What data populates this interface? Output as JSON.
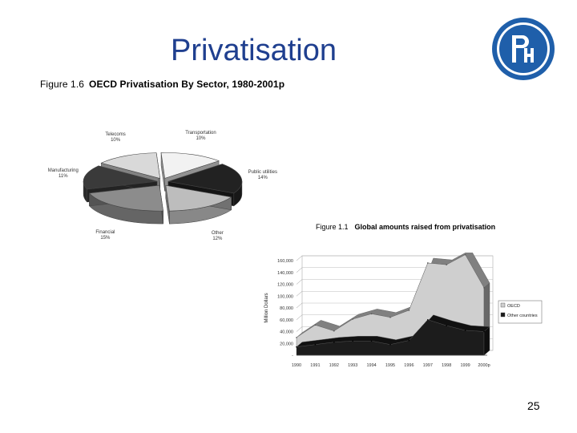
{
  "slide": {
    "title": "Privatisation",
    "page_number": "25",
    "logo": {
      "name": "hse-university-logo",
      "text": "Вш",
      "color": "#1f5faa"
    }
  },
  "chart_data": [
    {
      "type": "pie",
      "fig_num": "Figure 1.6",
      "title": "OECD Privatisation By Sector, 1980-2001p",
      "slices": [
        {
          "label": "Transportation",
          "pct_label": "10%",
          "value": 10,
          "color": "#f2f2f2"
        },
        {
          "label": "Public utilities",
          "pct_label": "14%",
          "value": 14,
          "color": "#222222"
        },
        {
          "label": "Other",
          "pct_label": "12%",
          "value": 12,
          "color": "#bdbdbd"
        },
        {
          "label": "Financial",
          "pct_label": "15%",
          "value": 15,
          "color": "#8c8c8c"
        },
        {
          "label": "Manufacturing",
          "pct_label": "11%",
          "value": 11,
          "color": "#3a3a3a"
        },
        {
          "label": "Telecoms",
          "pct_label": "10%",
          "value": 10,
          "color": "#d9d9d9"
        }
      ]
    },
    {
      "type": "area",
      "fig_num": "Figure 1.1",
      "title": "Global amounts raised from privatisation",
      "ylabel": "Million Dollars",
      "x": [
        "1990",
        "1991",
        "1992",
        "1993",
        "1994",
        "1995",
        "1996",
        "1997",
        "1998",
        "1999",
        "2000p"
      ],
      "yticks": [
        "160,000",
        "140,000",
        "120,000",
        "100,000",
        "80,000",
        "60,000",
        "40,000",
        "20,000",
        "-"
      ],
      "ylim": [
        0,
        160000
      ],
      "series": [
        {
          "name": "OECD",
          "color": "#cfcfcf",
          "values": [
            16000,
            33000,
            19000,
            37000,
            46000,
            46000,
            51000,
            96000,
            103000,
            128000,
            74000
          ]
        },
        {
          "name": "Other countries",
          "color": "#1c1c1c",
          "values": [
            14000,
            18000,
            22000,
            24000,
            24000,
            18000,
            25000,
            60000,
            50000,
            42000,
            40000
          ]
        }
      ]
    }
  ]
}
